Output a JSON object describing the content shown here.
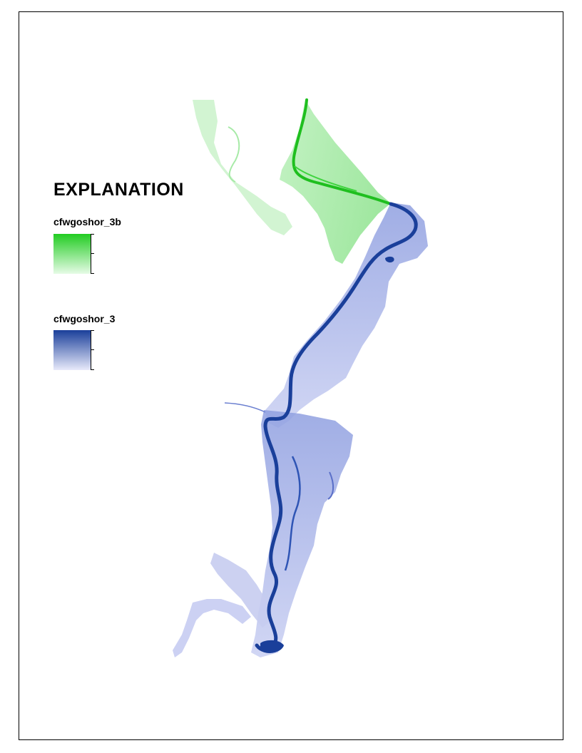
{
  "legend": {
    "title": "EXPLANATION",
    "layers": [
      {
        "name": "cfwgoshor_3b",
        "color_high": "#22cc22",
        "color_low": "#e6fbe6"
      },
      {
        "name": "cfwgoshor_3",
        "color_high": "#1a3f9a",
        "color_low": "#e8eafa"
      }
    ]
  },
  "colors": {
    "green_layer": "#22cc22",
    "blue_layer": "#1a3f9a"
  }
}
